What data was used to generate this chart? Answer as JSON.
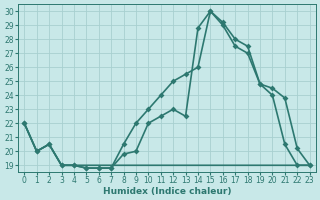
{
  "xlabel": "Humidex (Indice chaleur)",
  "bg_color": "#c8e8e8",
  "grid_color": "#a8d0d0",
  "line_color": "#2d7870",
  "xlim": [
    -0.5,
    23.5
  ],
  "ylim": [
    18.5,
    30.5
  ],
  "xticks": [
    0,
    1,
    2,
    3,
    4,
    5,
    6,
    7,
    8,
    9,
    10,
    11,
    12,
    13,
    14,
    15,
    16,
    17,
    18,
    19,
    20,
    21,
    22,
    23
  ],
  "yticks": [
    19,
    20,
    21,
    22,
    23,
    24,
    25,
    26,
    27,
    28,
    29,
    30
  ],
  "line1_x": [
    0,
    1,
    2,
    3,
    4,
    5,
    6,
    7,
    8,
    9,
    10,
    11,
    12,
    13,
    14,
    15,
    16,
    17,
    18,
    19,
    20,
    21,
    22,
    23
  ],
  "line1_y": [
    22,
    20,
    20.5,
    19,
    19,
    18.8,
    18.8,
    18.8,
    19.8,
    20,
    22,
    22.5,
    23,
    22.5,
    28.8,
    30,
    29,
    27.5,
    27,
    24.8,
    24,
    20.5,
    19,
    19
  ],
  "line2_x": [
    0,
    1,
    2,
    3,
    4,
    5,
    6,
    7,
    8,
    9,
    10,
    11,
    12,
    13,
    14,
    15,
    16,
    17,
    18,
    19,
    20,
    21,
    22,
    23
  ],
  "line2_y": [
    22,
    20,
    20.5,
    19,
    19,
    19,
    19,
    19,
    19,
    19,
    19,
    19,
    19,
    19,
    19,
    19,
    19,
    19,
    19,
    19,
    19,
    19,
    19,
    19
  ],
  "line3_x": [
    0,
    1,
    2,
    3,
    4,
    5,
    6,
    7,
    8,
    9,
    10,
    11,
    12,
    13,
    14,
    15,
    16,
    17,
    18,
    19,
    20,
    21,
    22,
    23
  ],
  "line3_y": [
    22,
    20,
    20.5,
    19,
    19,
    18.8,
    18.8,
    18.8,
    20.5,
    22,
    23,
    24,
    25,
    25.5,
    26,
    30,
    29.2,
    28,
    27.5,
    24.8,
    24.5,
    23.8,
    20.2,
    19
  ],
  "linewidth": 1.2,
  "marker_size": 3.0
}
